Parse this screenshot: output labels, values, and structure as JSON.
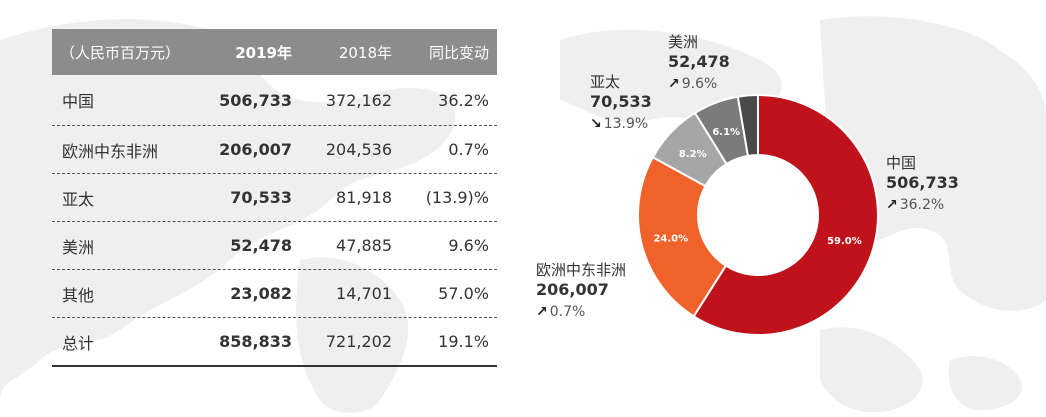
{
  "table": {
    "headers": [
      "（人民币百万元）",
      "2019年",
      "2018年",
      "同比变动"
    ],
    "rows": [
      [
        "中国",
        "506,733",
        "372,162",
        "36.2%"
      ],
      [
        "欧洲中东非洲",
        "206,007",
        "204,536",
        "0.7%"
      ],
      [
        "亚太",
        "70,533",
        "81,918",
        "(13.9)%"
      ],
      [
        "美洲",
        "52,478",
        "47,885",
        "9.6%"
      ],
      [
        "其他",
        "23,082",
        "14,701",
        "57.0%"
      ],
      [
        "总计",
        "858,833",
        "721,202",
        "19.1%"
      ]
    ]
  },
  "chart_data": {
    "type": "pie",
    "style": "donut",
    "slices": [
      {
        "name": "中国",
        "value": 506733,
        "pct_label": "59.0%",
        "color": "#c0121b"
      },
      {
        "name": "欧洲中东非洲",
        "value": 206007,
        "pct_label": "24.0%",
        "color": "#f0622a"
      },
      {
        "name": "亚太",
        "value": 70533,
        "pct_label": "8.2%",
        "color": "#a6a6a6"
      },
      {
        "name": "美洲",
        "value": 52478,
        "pct_label": "6.1%",
        "color": "#7b7b7b"
      },
      {
        "name": "其他",
        "value": 23082,
        "pct_label": "",
        "color": "#4a4a4a"
      }
    ]
  },
  "callouts": {
    "china": {
      "name": "中国",
      "value": "506,733",
      "change": "36.2%",
      "arrow": "↗"
    },
    "emea": {
      "name": "欧洲中东非洲",
      "value": "206,007",
      "change": "0.7%",
      "arrow": "↗"
    },
    "apac": {
      "name": "亚太",
      "value": "70,533",
      "change": "13.9%",
      "arrow": "↘"
    },
    "americas": {
      "name": "美洲",
      "value": "52,478",
      "change": "9.6%",
      "arrow": "↗"
    }
  }
}
